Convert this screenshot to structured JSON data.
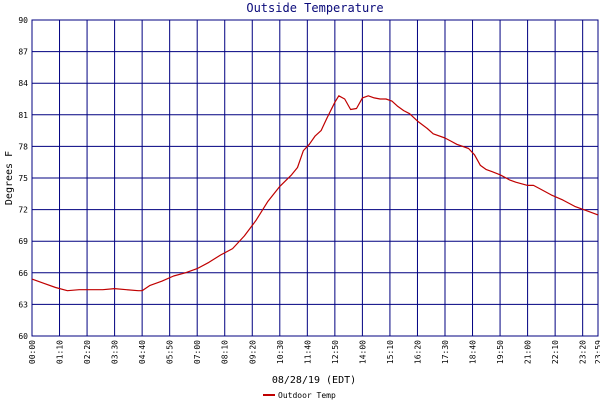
{
  "chart_data": {
    "type": "line",
    "title": "Outside Temperature",
    "xlabel": "08/28/19 (EDT)",
    "ylabel": "Degrees F",
    "ylim": [
      60,
      90
    ],
    "yticks": [
      60,
      63,
      66,
      69,
      72,
      75,
      78,
      81,
      84,
      87,
      90
    ],
    "xticks": [
      "00:00",
      "01:10",
      "02:20",
      "03:30",
      "04:40",
      "05:50",
      "07:00",
      "08:10",
      "09:20",
      "10:30",
      "11:40",
      "12:50",
      "14:00",
      "15:10",
      "16:20",
      "17:30",
      "18:40",
      "19:50",
      "21:00",
      "22:10",
      "23:20",
      "23:59"
    ],
    "grid": true,
    "legend_position": "bottom-center",
    "colors": {
      "line": "#c00000",
      "grid": "#000080",
      "title": "#0a0a7a"
    },
    "series": [
      {
        "name": "Outdoor Temp",
        "x": [
          "00:00",
          "00:30",
          "01:00",
          "01:30",
          "02:00",
          "02:30",
          "03:00",
          "03:30",
          "04:00",
          "04:30",
          "04:40",
          "05:00",
          "05:30",
          "06:00",
          "06:30",
          "07:00",
          "07:30",
          "08:00",
          "08:30",
          "09:00",
          "09:30",
          "10:00",
          "10:30",
          "11:00",
          "11:15",
          "11:30",
          "11:45",
          "12:00",
          "12:15",
          "12:30",
          "12:50",
          "13:00",
          "13:15",
          "13:30",
          "13:45",
          "14:00",
          "14:15",
          "14:30",
          "14:45",
          "15:00",
          "15:15",
          "15:30",
          "15:45",
          "16:00",
          "16:20",
          "16:45",
          "17:00",
          "17:30",
          "17:45",
          "18:00",
          "18:30",
          "18:45",
          "19:00",
          "19:15",
          "19:30",
          "19:50",
          "20:15",
          "20:30",
          "21:00",
          "21:15",
          "21:30",
          "22:00",
          "22:30",
          "23:00",
          "23:30",
          "23:59"
        ],
        "y": [
          65.4,
          65.0,
          64.6,
          64.3,
          64.4,
          64.4,
          64.4,
          64.5,
          64.4,
          64.3,
          64.3,
          64.8,
          65.2,
          65.7,
          66.0,
          66.4,
          67.0,
          67.7,
          68.3,
          69.5,
          71.0,
          72.8,
          74.2,
          75.3,
          76.0,
          77.6,
          78.2,
          79.0,
          79.5,
          80.7,
          82.2,
          82.8,
          82.5,
          81.5,
          81.6,
          82.6,
          82.8,
          82.6,
          82.5,
          82.5,
          82.3,
          81.8,
          81.4,
          81.1,
          80.4,
          79.7,
          79.2,
          78.8,
          78.5,
          78.2,
          77.8,
          77.2,
          76.2,
          75.8,
          75.6,
          75.3,
          74.8,
          74.6,
          74.3,
          74.3,
          74.0,
          73.4,
          72.9,
          72.3,
          71.9,
          71.5
        ]
      }
    ]
  }
}
